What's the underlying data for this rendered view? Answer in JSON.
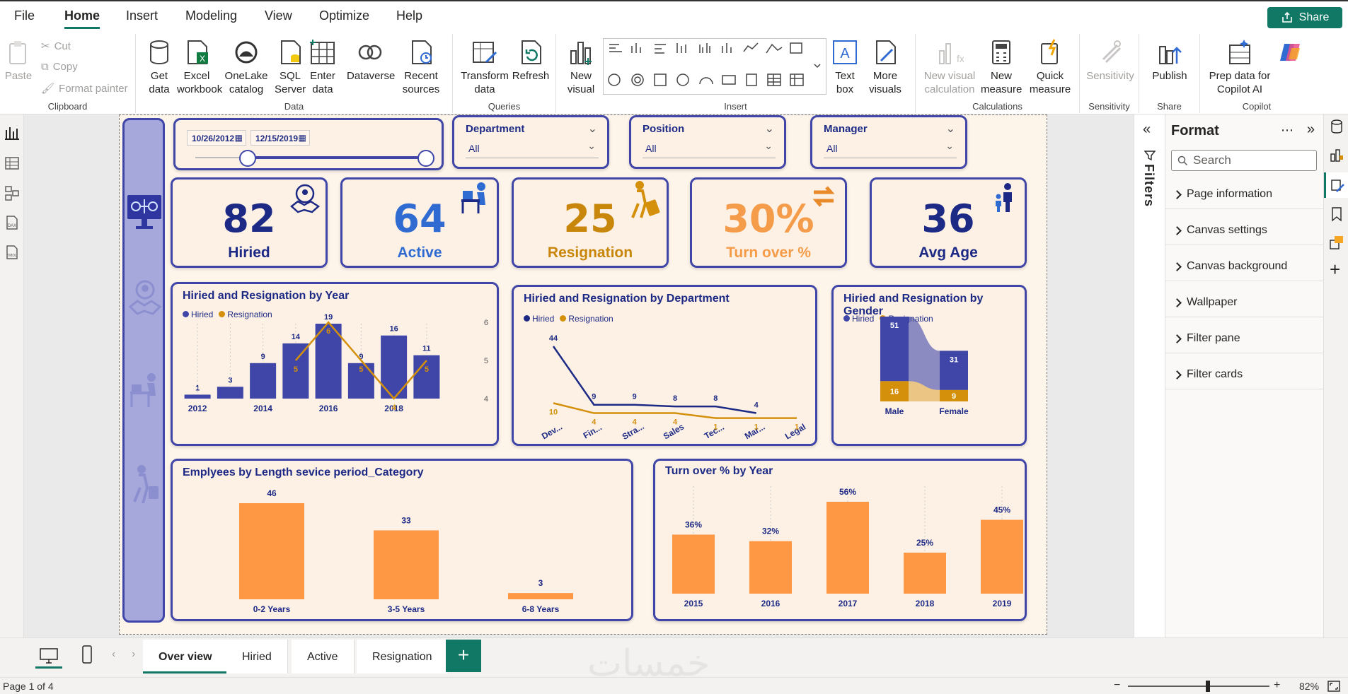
{
  "menu": {
    "items": [
      "File",
      "Home",
      "Insert",
      "Modeling",
      "View",
      "Optimize",
      "Help"
    ],
    "active": "Home",
    "share": "Share"
  },
  "ribbon": {
    "clipboard": {
      "paste": "Paste",
      "cut": "Cut",
      "copy": "Copy",
      "format_painter": "Format painter",
      "label": "Clipboard"
    },
    "data": {
      "get_data": "Get data",
      "excel": "Excel workbook",
      "onelake": "OneLake catalog",
      "sql": "SQL Server",
      "enter": "Enter data",
      "dataverse": "Dataverse",
      "recent": "Recent sources",
      "label": "Data"
    },
    "queries": {
      "transform": "Transform data",
      "refresh": "Refresh",
      "label": "Queries"
    },
    "insert": {
      "new_visual": "New visual",
      "text_box": "Text box",
      "more_visuals": "More visuals",
      "label": "Insert"
    },
    "calculations": {
      "new_visual_calc": "New visual calculation",
      "new_measure": "New measure",
      "quick_measure": "Quick measure",
      "label": "Calculations"
    },
    "sensitivity": {
      "btn": "Sensitivity",
      "label": "Sensitivity"
    },
    "share": {
      "publish": "Publish",
      "label": "Share"
    },
    "copilot": {
      "prep": "Prep data for Copilot AI",
      "label": "Copilot"
    }
  },
  "report": {
    "date_slicer": {
      "start": "10/26/2012",
      "end": "12/15/2019"
    },
    "slicers": [
      {
        "title": "Department",
        "value": "All"
      },
      {
        "title": "Position",
        "value": "All"
      },
      {
        "title": "Manager",
        "value": "All"
      }
    ],
    "kpis": [
      {
        "value": "82",
        "label": "Hiried",
        "color": "#1d2a85"
      },
      {
        "value": "64",
        "label": "Active",
        "color": "#2f6bd1"
      },
      {
        "value": "25",
        "label": "Resignation",
        "color": "#c8860a"
      },
      {
        "value": "30%",
        "label": "Turn over %",
        "color": "#f59c4a"
      },
      {
        "value": "36",
        "label": "Avg Age",
        "color": "#1d2a85"
      }
    ],
    "colors": {
      "hiried": "#3f46a8",
      "resignation": "#d4900a",
      "orange_bar": "#ff9845",
      "dark_blue": "#1d2a85"
    }
  },
  "chart_data": [
    {
      "type": "bar",
      "title": "Hiried and Resignation by Year",
      "categories": [
        "2012",
        "2013",
        "2014",
        "2015",
        "2016",
        "2017",
        "2018",
        "2019"
      ],
      "xtick_labels": [
        "2012",
        "",
        "2014",
        "",
        "2016",
        "",
        "2018",
        ""
      ],
      "series": [
        {
          "name": "Hiried",
          "type": "bar",
          "values": [
            1,
            3,
            9,
            14,
            19,
            9,
            16,
            11
          ]
        },
        {
          "name": "Resignation",
          "type": "line",
          "axis": "secondary",
          "values": [
            null,
            null,
            null,
            5,
            6,
            5,
            4,
            5
          ]
        }
      ],
      "y2ticks": [
        "6",
        "5",
        "4"
      ],
      "y2lim": [
        4,
        6
      ]
    },
    {
      "type": "line",
      "title": "Hiried and Resignation by Department",
      "categories": [
        "Dev...",
        "Fin...",
        "Stra...",
        "Sales",
        "Tec...",
        "Mar...",
        "Legal"
      ],
      "series": [
        {
          "name": "Hiried",
          "values": [
            44,
            9,
            9,
            8,
            8,
            4,
            null
          ]
        },
        {
          "name": "Resignation",
          "values": [
            10,
            4,
            4,
            4,
            1,
            1,
            1
          ]
        }
      ]
    },
    {
      "type": "bar",
      "title": "Hiried and Resignation by Gender",
      "categories": [
        "Male",
        "Female"
      ],
      "stacked": true,
      "series": [
        {
          "name": "Hiried",
          "values": [
            51,
            31
          ]
        },
        {
          "name": "Resignation",
          "values": [
            16,
            9
          ]
        }
      ]
    },
    {
      "type": "bar",
      "title": "Emplyees by Length sevice period_Category",
      "categories": [
        "0-2 Years",
        "3-5 Years",
        "6-8 Years"
      ],
      "values": [
        46,
        33,
        3
      ]
    },
    {
      "type": "bar",
      "title": "Turn over % by Year",
      "categories": [
        "2015",
        "2016",
        "2017",
        "2018",
        "2019"
      ],
      "values": [
        36,
        32,
        56,
        25,
        45
      ],
      "value_labels": [
        "36%",
        "32%",
        "56%",
        "25%",
        "45%"
      ]
    }
  ],
  "filters": {
    "label": "Filters"
  },
  "format_pane": {
    "title": "Format",
    "search_placeholder": "Search",
    "sections": [
      "Page information",
      "Canvas settings",
      "Canvas background",
      "Wallpaper",
      "Filter pane",
      "Filter cards"
    ]
  },
  "pages": {
    "tabs": [
      "Over view",
      "Hiried",
      "Active",
      "Resignation"
    ],
    "active": "Over view",
    "add": "+"
  },
  "status": {
    "page": "Page 1 of 4",
    "zoom": "82%"
  },
  "watermark": "خمسات"
}
